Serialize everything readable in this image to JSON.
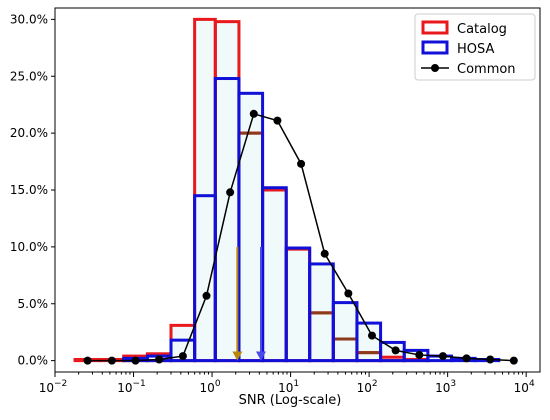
{
  "chart_data": {
    "type": "bar",
    "title": "",
    "xlabel": "SNR (Log-scale)",
    "ylabel": "",
    "x_scale": "log",
    "xlim": [
      0.01,
      15000
    ],
    "ylim": [
      -0.01,
      0.31
    ],
    "grid": false,
    "legend_position": "top-right",
    "y_ticks": [
      0.0,
      0.05,
      0.1,
      0.15,
      0.2,
      0.25,
      0.3
    ],
    "y_tick_labels": [
      "0.0%",
      "5.0%",
      "10.0%",
      "15.0%",
      "20.0%",
      "25.0%",
      "30.0%"
    ],
    "x_ticks": [
      {
        "base": "10",
        "exp": "−2",
        "value": 0.01
      },
      {
        "base": "10",
        "exp": "−1",
        "value": 0.1
      },
      {
        "base": "10",
        "exp": "0",
        "value": 1
      },
      {
        "base": "10",
        "exp": "1",
        "value": 10
      },
      {
        "base": "10",
        "exp": "2",
        "value": 100
      },
      {
        "base": "10",
        "exp": "3",
        "value": 1000
      },
      {
        "base": "10",
        "exp": "4",
        "value": 10000
      }
    ],
    "bin_edges": [
      0.018,
      0.037,
      0.075,
      0.15,
      0.3,
      0.6,
      1.1,
      2.2,
      4.4,
      8.8,
      17.5,
      35,
      70,
      140,
      280,
      560,
      1120,
      2240,
      4480,
      8960
    ],
    "series": [
      {
        "name": "Catalog",
        "kind": "histogram",
        "color": "#e8181c",
        "values": [
          0.001,
          0.001,
          0.004,
          0.006,
          0.031,
          0.3,
          0.298,
          0.2,
          0.15,
          0.098,
          0.042,
          0.019,
          0.007,
          0.003,
          0.001,
          0.0,
          0.0,
          0.0,
          0.0
        ]
      },
      {
        "name": "HOSA",
        "kind": "histogram",
        "color": "#1010d8",
        "values": [
          0.0,
          0.0,
          0.002,
          0.004,
          0.018,
          0.145,
          0.248,
          0.235,
          0.152,
          0.099,
          0.085,
          0.051,
          0.033,
          0.016,
          0.009,
          0.004,
          0.002,
          0.001,
          0.0
        ]
      },
      {
        "name": "Common",
        "kind": "line",
        "color": "#000000",
        "x": [
          0.026,
          0.053,
          0.106,
          0.212,
          0.425,
          0.85,
          1.7,
          3.4,
          6.8,
          13.6,
          27.2,
          54.4,
          108.8,
          217.6,
          435.2,
          870.4,
          1740.8,
          3481.6,
          6963.2
        ],
        "values": [
          0.0,
          0.0,
          0.0,
          0.001,
          0.004,
          0.057,
          0.148,
          0.217,
          0.211,
          0.173,
          0.094,
          0.059,
          0.022,
          0.009,
          0.005,
          0.004,
          0.002,
          0.001,
          0.0
        ]
      }
    ],
    "markers": [
      {
        "x": 2.1,
        "y_top": 0.1,
        "color": "#b8860b"
      },
      {
        "x": 4.2,
        "y_top": 0.1,
        "color": "#4a4ae8"
      }
    ]
  }
}
